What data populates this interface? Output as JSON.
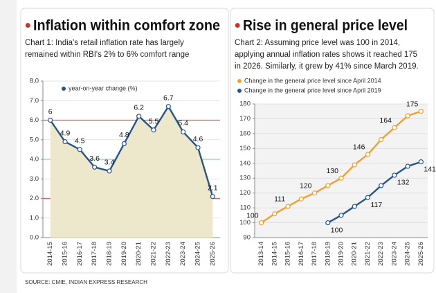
{
  "chart_data": [
    {
      "type": "line",
      "title": "Inflation within comfort zone",
      "subtitle": [
        "Chart 1: India's retail inflation rate has largely",
        "remained within RBI's 2% to 6% comfort range"
      ],
      "categories": [
        "2014-15",
        "2015-16",
        "2016-17",
        "2017-18",
        "2018-19",
        "2019-20",
        "2020-21",
        "2021-22",
        "2022-23",
        "2023-24",
        "2024-25",
        "2025-26"
      ],
      "series": [
        {
          "name": "year-on-year change (%)",
          "color": "#24548f",
          "values": [
            6,
            4.9,
            4.5,
            3.6,
            3.4,
            4.8,
            6.2,
            5.5,
            6.7,
            5.4,
            4.6,
            2.1
          ]
        }
      ],
      "area_color": "#ede7cc",
      "ylim": [
        0,
        8
      ],
      "yticks": [
        {
          "value": 0,
          "label": "0.0"
        },
        {
          "value": 1,
          "label": "1.0"
        },
        {
          "value": 2,
          "label": "2.0"
        },
        {
          "value": 3,
          "label": "3.0"
        },
        {
          "value": 4,
          "label": "4.0"
        },
        {
          "value": 5,
          "label": "5.0"
        },
        {
          "value": 6,
          "label": "6.0"
        },
        {
          "value": 7,
          "label": "7.0"
        },
        {
          "value": 8,
          "label": "8.0"
        }
      ],
      "reference_lines": [
        {
          "value": 2,
          "color": "#e05a5a"
        },
        {
          "value": 4,
          "color": "#8fd0ae"
        },
        {
          "value": 6,
          "color": "#e05a5a"
        }
      ],
      "grid": true,
      "legend": "top-left"
    },
    {
      "type": "line",
      "title": "Rise in general price level",
      "subtitle": [
        "Chart 2: Assuming price level was 100 in 2014,",
        "applying annual inflation rates shows it reached 175",
        "in 2026. Similarly, it grew by 41% since March 2019."
      ],
      "categories": [
        "2013-14",
        "2014-15",
        "2015-16",
        "2016-17",
        "2017-18",
        "2018-19",
        "2019-20",
        "2020-21",
        "2021-22",
        "2022-23",
        "2023-24",
        "2024-25",
        "2025-26"
      ],
      "series": [
        {
          "name": "Change in the general price level since April 2014",
          "color": "#f0a02c",
          "values": [
            100,
            106,
            111,
            116,
            120,
            125,
            130,
            139,
            146,
            156,
            164,
            172,
            175
          ],
          "value_labels": [
            "100",
            null,
            "111",
            null,
            "120",
            null,
            "130",
            null,
            "146",
            null,
            "164",
            null,
            "175"
          ]
        },
        {
          "name": "Change in the general price level since April 2019",
          "color": "#24548f",
          "values": [
            null,
            null,
            null,
            null,
            null,
            100,
            105,
            111,
            117,
            125,
            132,
            138,
            141
          ],
          "value_labels": [
            null,
            null,
            null,
            null,
            null,
            "100",
            null,
            null,
            "117",
            null,
            "132",
            null,
            "141"
          ]
        }
      ],
      "ylim": [
        90,
        180
      ],
      "yticks": [
        90,
        100,
        110,
        120,
        130,
        140,
        150,
        160,
        170,
        180
      ],
      "grid": true,
      "legend": "top-left"
    }
  ],
  "source": "SOURCE: CMIE, INDIAN EXPRESS RESEARCH"
}
